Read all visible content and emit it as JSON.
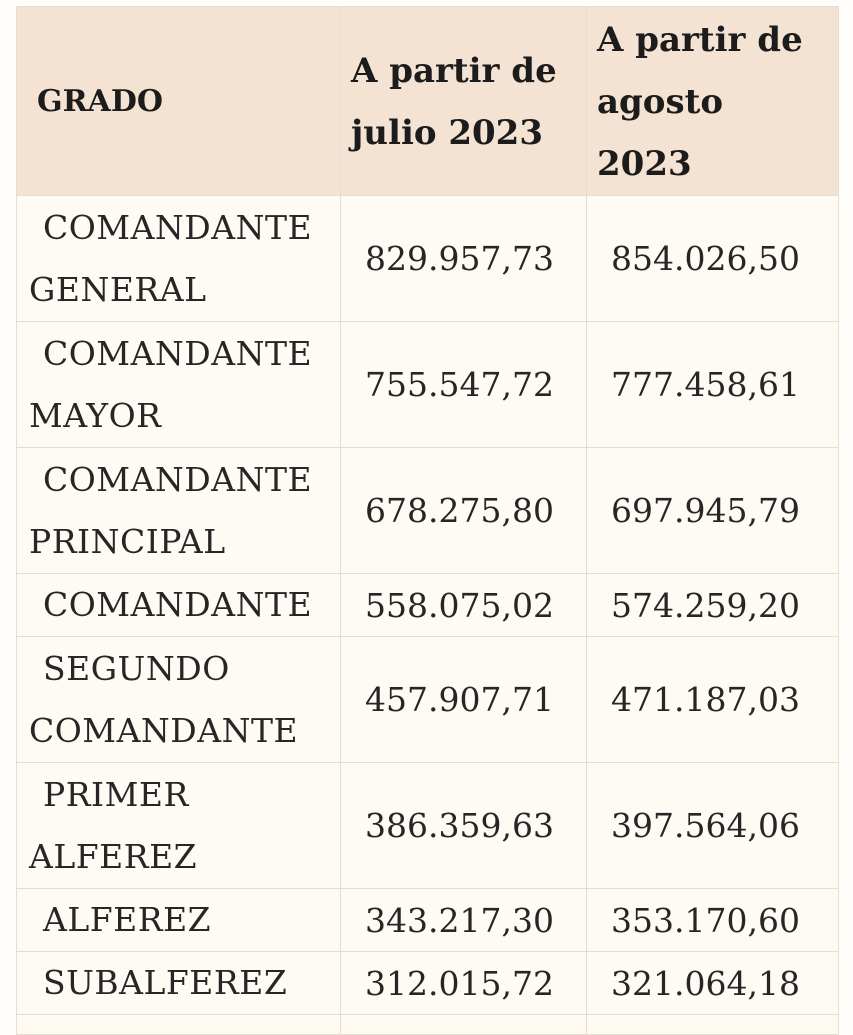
{
  "table": {
    "headers": {
      "grado": "GRADO",
      "julio_line1": "A partir de",
      "julio_line2": "julio 2023",
      "agosto_line1": "A partir de",
      "agosto_line2": "agosto 2023"
    },
    "rows": [
      {
        "line1": "COMANDANTE",
        "line2": "GENERAL",
        "julio": "829.957,73",
        "agosto": "854.026,50"
      },
      {
        "line1": "COMANDANTE",
        "line2": "MAYOR",
        "julio": "755.547,72",
        "agosto": "777.458,61"
      },
      {
        "line1": "COMANDANTE",
        "line2": "PRINCIPAL",
        "julio": "678.275,80",
        "agosto": "697.945,79"
      },
      {
        "line1": "COMANDANTE",
        "line2": "",
        "julio": "558.075,02",
        "agosto": "574.259,20"
      },
      {
        "line1": "SEGUNDO",
        "line2": "COMANDANTE",
        "julio": "457.907,71",
        "agosto": "471.187,03"
      },
      {
        "line1": "PRIMER",
        "line2": "ALFEREZ",
        "julio": "386.359,63",
        "agosto": "397.564,06"
      },
      {
        "line1": "ALFEREZ",
        "line2": "",
        "julio": "343.217,30",
        "agosto": "353.170,60"
      },
      {
        "line1": "SUBALFEREZ",
        "line2": "",
        "julio": "312.015,72",
        "agosto": "321.064,18"
      }
    ]
  }
}
